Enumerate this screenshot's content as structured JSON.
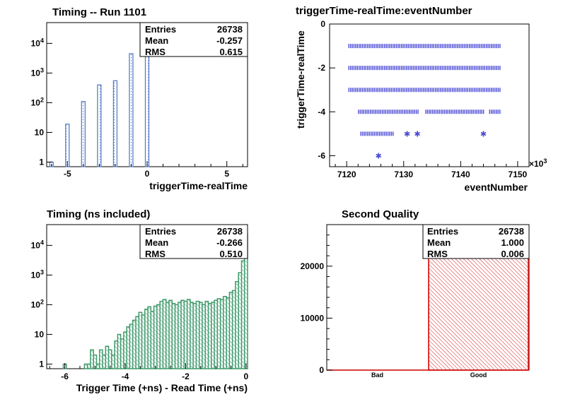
{
  "chart_data": [
    {
      "type": "bar",
      "title": "Timing -- Run 1101",
      "xlabel": "triggerTime-realTime",
      "ylabel": "",
      "xlim": [
        -6.3,
        6.3
      ],
      "ylim": [
        0.7,
        50000
      ],
      "yscale": "log",
      "xticks": [
        -5,
        0,
        5
      ],
      "yticks": [
        {
          "value": 1,
          "label": "1"
        },
        {
          "value": 10,
          "label": "10"
        },
        {
          "value": 100,
          "label": "10^2"
        },
        {
          "value": 1000,
          "label": "10^3"
        },
        {
          "value": 10000,
          "label": "10^4"
        }
      ],
      "line_color": "#5a7fc8",
      "fill": "dotted-blue",
      "bins": [
        {
          "x": -6,
          "value": 1
        },
        {
          "x": -5,
          "value": 19
        },
        {
          "x": -4,
          "value": 110
        },
        {
          "x": -3,
          "value": 400
        },
        {
          "x": -2,
          "value": 550
        },
        {
          "x": -1,
          "value": 4500
        },
        {
          "x": 0,
          "value": 21000
        }
      ],
      "stats": {
        "entries_label": "Entries",
        "entries": "26738",
        "mean_label": "Mean",
        "mean": "-0.257",
        "rms_label": "RMS",
        "rms": "0.615"
      }
    },
    {
      "type": "scatter",
      "title": "triggerTime-realTime:eventNumber",
      "xlabel": "eventNumber",
      "ylabel": "triggerTime-realTime",
      "x_multiplier": "×10^3",
      "xlim": [
        7117,
        7152
      ],
      "ylim": [
        -6.5,
        0
      ],
      "xticks": [
        7120,
        7130,
        7140,
        7150
      ],
      "yticks": [
        0,
        -2,
        -4,
        -6
      ],
      "marker_color": "#4b4bd6",
      "segments": [
        {
          "y": -1,
          "x_start": 7120.3,
          "x_end": 7147.1
        },
        {
          "y": -2,
          "x_start": 7120.3,
          "x_end": 7147.1
        },
        {
          "y": -3,
          "x_start": 7120.3,
          "x_end": 7147.1
        },
        {
          "y": -4,
          "x_start": 7122.0,
          "x_end": 7132.6
        },
        {
          "y": -4,
          "x_start": 7133.8,
          "x_end": 7144.2
        },
        {
          "y": -4,
          "x_start": 7145.0,
          "x_end": 7147.1
        },
        {
          "y": -5,
          "x_start": 7122.4,
          "x_end": 7128.3
        }
      ],
      "points": [
        {
          "x": 7130.6,
          "y": -5
        },
        {
          "x": 7132.4,
          "y": -5
        },
        {
          "x": 7144.0,
          "y": -5
        },
        {
          "x": 7125.6,
          "y": -6
        }
      ]
    },
    {
      "type": "bar",
      "title": "Timing (ns included)",
      "xlabel": "Trigger Time (+ns) - Read Time (+ns)",
      "ylabel": "",
      "xlim": [
        -6.6,
        0.05
      ],
      "ylim": [
        0.7,
        50000
      ],
      "yscale": "log",
      "xticks": [
        -6,
        -4,
        -2,
        0
      ],
      "yticks": [
        {
          "value": 1,
          "label": "1"
        },
        {
          "value": 10,
          "label": "10"
        },
        {
          "value": 100,
          "label": "10^2"
        },
        {
          "value": 1000,
          "label": "10^3"
        },
        {
          "value": 10000,
          "label": "10^4"
        }
      ],
      "line_color": "#3e9a6a",
      "fill": "hatched-green",
      "bin_width": 0.1,
      "bins": [
        {
          "x": -6.0,
          "value": 1
        },
        {
          "x": -5.3,
          "value": 1
        },
        {
          "x": -5.2,
          "value": 1
        },
        {
          "x": -5.1,
          "value": 3
        },
        {
          "x": -5.0,
          "value": 2
        },
        {
          "x": -4.9,
          "value": 1
        },
        {
          "x": -4.8,
          "value": 3
        },
        {
          "x": -4.7,
          "value": 2
        },
        {
          "x": -4.6,
          "value": 4
        },
        {
          "x": -4.5,
          "value": 3
        },
        {
          "x": -4.4,
          "value": 2
        },
        {
          "x": -4.3,
          "value": 6
        },
        {
          "x": -4.2,
          "value": 10
        },
        {
          "x": -4.1,
          "value": 7
        },
        {
          "x": -4.0,
          "value": 12
        },
        {
          "x": -3.9,
          "value": 18
        },
        {
          "x": -3.8,
          "value": 22
        },
        {
          "x": -3.7,
          "value": 30
        },
        {
          "x": -3.6,
          "value": 40
        },
        {
          "x": -3.5,
          "value": 55
        },
        {
          "x": -3.4,
          "value": 45
        },
        {
          "x": -3.3,
          "value": 70
        },
        {
          "x": -3.2,
          "value": 85
        },
        {
          "x": -3.1,
          "value": 60
        },
        {
          "x": -3.0,
          "value": 90
        },
        {
          "x": -2.9,
          "value": 100
        },
        {
          "x": -2.8,
          "value": 130
        },
        {
          "x": -2.7,
          "value": 150
        },
        {
          "x": -2.6,
          "value": 120
        },
        {
          "x": -2.5,
          "value": 140
        },
        {
          "x": -2.4,
          "value": 110
        },
        {
          "x": -2.3,
          "value": 100
        },
        {
          "x": -2.2,
          "value": 120
        },
        {
          "x": -2.1,
          "value": 140
        },
        {
          "x": -2.0,
          "value": 130
        },
        {
          "x": -1.9,
          "value": 150
        },
        {
          "x": -1.8,
          "value": 120
        },
        {
          "x": -1.7,
          "value": 110
        },
        {
          "x": -1.6,
          "value": 130
        },
        {
          "x": -1.5,
          "value": 120
        },
        {
          "x": -1.4,
          "value": 100
        },
        {
          "x": -1.3,
          "value": 130
        },
        {
          "x": -1.2,
          "value": 110
        },
        {
          "x": -1.1,
          "value": 120
        },
        {
          "x": -1.0,
          "value": 140
        },
        {
          "x": -0.9,
          "value": 160
        },
        {
          "x": -0.8,
          "value": 150
        },
        {
          "x": -0.7,
          "value": 190
        },
        {
          "x": -0.6,
          "value": 170
        },
        {
          "x": -0.5,
          "value": 260
        },
        {
          "x": -0.4,
          "value": 300
        },
        {
          "x": -0.3,
          "value": 600
        },
        {
          "x": -0.2,
          "value": 1200
        },
        {
          "x": -0.1,
          "value": 3000
        },
        {
          "x": 0.0,
          "value": 24000
        }
      ],
      "stats": {
        "entries_label": "Entries",
        "entries": "26738",
        "mean_label": "Mean",
        "mean": "-0.266",
        "rms_label": "RMS",
        "rms": "0.510"
      }
    },
    {
      "type": "bar",
      "title": "Second Quality",
      "xlabel": "",
      "ylabel": "",
      "categories": [
        "Bad",
        "Good"
      ],
      "values": [
        0,
        26738
      ],
      "ylim": [
        0,
        28000
      ],
      "yticks": [
        0,
        10000,
        20000
      ],
      "line_color": "#d62020",
      "fill": "hatched-red",
      "stats": {
        "entries_label": "Entries",
        "entries": "26738",
        "mean_label": "Mean",
        "mean": "1.000",
        "rms_label": "RMS",
        "rms": "0.006"
      }
    }
  ]
}
